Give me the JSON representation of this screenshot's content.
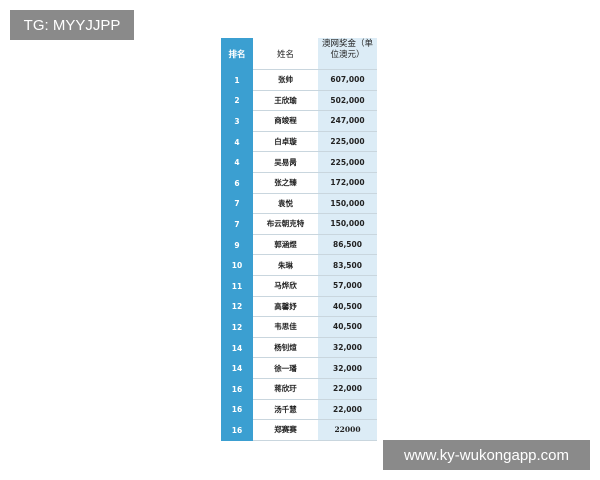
{
  "watermarks": {
    "top": "TG: MYYJJPP",
    "bottom": "www.ky-wukongapp.com"
  },
  "table": {
    "header": [
      "排名",
      "姓名",
      "澳网奖金（单位澳元）"
    ],
    "rows": [
      [
        "1",
        "张帅",
        "607,000"
      ],
      [
        "2",
        "王欣瑜",
        "502,000"
      ],
      [
        "3",
        "商竣程",
        "247,000"
      ],
      [
        "4",
        "白卓璇",
        "225,000"
      ],
      [
        "4",
        "吴易昺",
        "225,000"
      ],
      [
        "6",
        "张之臻",
        "172,000"
      ],
      [
        "7",
        "袁悦",
        "150,000"
      ],
      [
        "7",
        "布云朝克特",
        "150,000"
      ],
      [
        "9",
        "郭涵煜",
        "86,500"
      ],
      [
        "10",
        "朱琳",
        "83,500"
      ],
      [
        "11",
        "马烨欣",
        "57,000"
      ],
      [
        "12",
        "高馨妤",
        "40,500"
      ],
      [
        "12",
        "韦思佳",
        "40,500"
      ],
      [
        "14",
        "杨钊煊",
        "32,000"
      ],
      [
        "14",
        "徐一璠",
        "32,000"
      ],
      [
        "16",
        "蒋欣玗",
        "22,000"
      ],
      [
        "16",
        "汤千慧",
        "22,000"
      ],
      [
        "16",
        "郑赛赛",
        "22000"
      ]
    ]
  }
}
